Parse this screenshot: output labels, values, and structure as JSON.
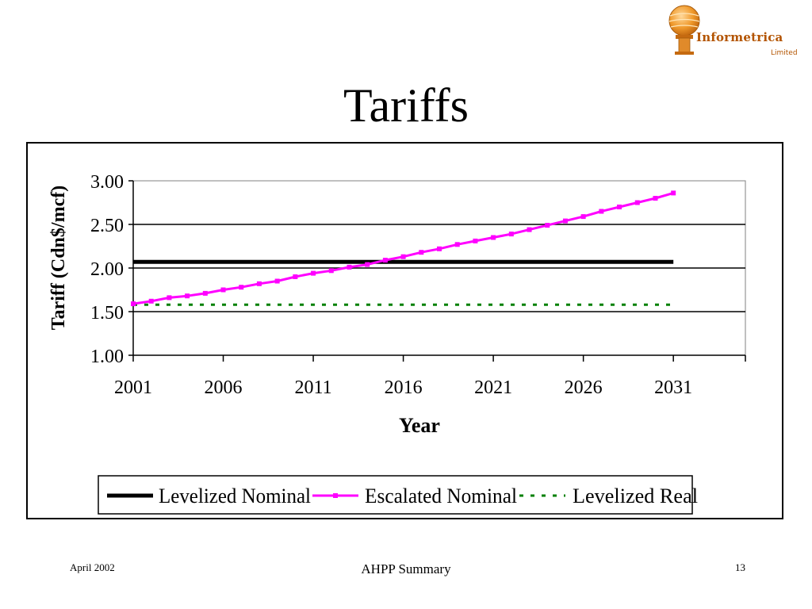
{
  "slide": {
    "title": "Tariffs",
    "footer_left": "April 2002",
    "footer_center": "AHPP Summary",
    "footer_right": "13"
  },
  "logo": {
    "name": "Informetrica",
    "sub": "Limited",
    "color": "#b35400"
  },
  "chart_data": {
    "type": "line",
    "title": "",
    "xlabel": "Year",
    "ylabel": "Tariff (Cdn$/mcf)",
    "xlim": [
      2001,
      2035
    ],
    "ylim": [
      1.0,
      3.0
    ],
    "xticks": [
      2001,
      2006,
      2011,
      2016,
      2021,
      2026,
      2031
    ],
    "yticks": [
      "1.00",
      "1.50",
      "2.00",
      "2.50",
      "3.00"
    ],
    "grid": "horizontal",
    "legend_position": "bottom",
    "x": [
      2001,
      2002,
      2003,
      2004,
      2005,
      2006,
      2007,
      2008,
      2009,
      2010,
      2011,
      2012,
      2013,
      2014,
      2015,
      2016,
      2017,
      2018,
      2019,
      2020,
      2021,
      2022,
      2023,
      2024,
      2025,
      2026,
      2027,
      2028,
      2029,
      2030,
      2031
    ],
    "series": [
      {
        "name": "Levelized Nominal",
        "color": "#000000",
        "style": "solid-thick",
        "values": [
          2.07,
          2.07,
          2.07,
          2.07,
          2.07,
          2.07,
          2.07,
          2.07,
          2.07,
          2.07,
          2.07,
          2.07,
          2.07,
          2.07,
          2.07,
          2.07,
          2.07,
          2.07,
          2.07,
          2.07,
          2.07,
          2.07,
          2.07,
          2.07,
          2.07,
          2.07,
          2.07,
          2.07,
          2.07,
          2.07,
          2.07
        ]
      },
      {
        "name": "Escalated Nominal",
        "color": "#ff00ff",
        "style": "solid-markers",
        "values": [
          1.59,
          1.62,
          1.66,
          1.68,
          1.71,
          1.75,
          1.78,
          1.82,
          1.85,
          1.9,
          1.94,
          1.97,
          2.01,
          2.04,
          2.09,
          2.13,
          2.18,
          2.22,
          2.27,
          2.31,
          2.35,
          2.39,
          2.44,
          2.49,
          2.54,
          2.59,
          2.65,
          2.7,
          2.75,
          2.8,
          2.86
        ]
      },
      {
        "name": "Levelized Real",
        "color": "#008000",
        "style": "dashed",
        "values": [
          1.58,
          1.58,
          1.58,
          1.58,
          1.58,
          1.58,
          1.58,
          1.58,
          1.58,
          1.58,
          1.58,
          1.58,
          1.58,
          1.58,
          1.58,
          1.58,
          1.58,
          1.58,
          1.58,
          1.58,
          1.58,
          1.58,
          1.58,
          1.58,
          1.58,
          1.58,
          1.58,
          1.58,
          1.58,
          1.58,
          1.58
        ]
      }
    ]
  }
}
